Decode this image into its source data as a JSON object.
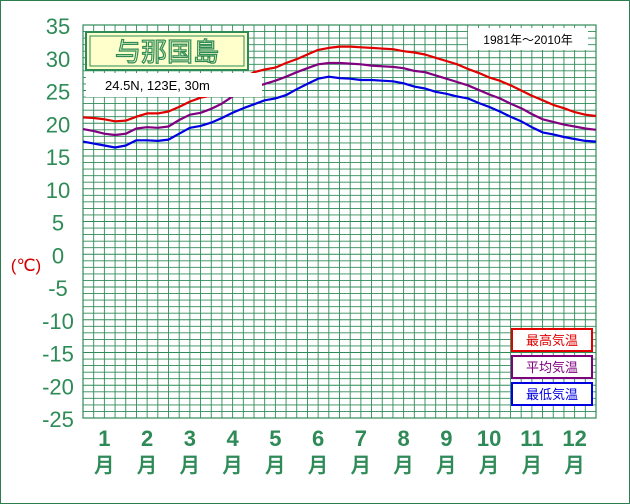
{
  "title": "与那国島",
  "location": "24.5N,  123E,  30m",
  "period": "1981年〜2010年",
  "unit_label": "(℃)",
  "colors": {
    "grid": "#2e8b57",
    "tick_text": "#2e8b57",
    "unit_text": "#d00000",
    "title_bg": "#ffffcc",
    "title_border": "#2e8b57"
  },
  "chart_data": {
    "type": "line",
    "title": "与那国島",
    "subtitle": "24.5N,  123E,  30m",
    "period": "1981年〜2010年",
    "ylabel": "(℃)",
    "ylim": [
      -25,
      35
    ],
    "yticks": [
      35,
      30,
      25,
      20,
      15,
      10,
      5,
      0,
      -5,
      -10,
      -15,
      -20,
      -25
    ],
    "month_numbers": [
      "1",
      "2",
      "3",
      "4",
      "5",
      "6",
      "7",
      "8",
      "9",
      "10",
      "11",
      "12"
    ],
    "month_suffix": "月",
    "x": [
      0.5,
      0.75,
      1.0,
      1.25,
      1.5,
      1.75,
      2.0,
      2.25,
      2.5,
      2.75,
      3.0,
      3.25,
      3.5,
      3.75,
      4.0,
      4.25,
      4.5,
      4.75,
      5.0,
      5.25,
      5.5,
      5.75,
      6.0,
      6.25,
      6.5,
      6.75,
      7.0,
      7.25,
      7.5,
      7.75,
      8.0,
      8.25,
      8.5,
      8.75,
      9.0,
      9.25,
      9.5,
      9.75,
      10.0,
      10.25,
      10.5,
      10.75,
      11.0,
      11.25,
      11.5,
      11.75,
      12.0,
      12.25,
      12.5
    ],
    "series": [
      {
        "name": "最高気温",
        "color": "#e00000",
        "values": [
          20.9,
          20.8,
          20.6,
          20.3,
          20.4,
          21.0,
          21.5,
          21.5,
          21.8,
          22.5,
          23.3,
          23.9,
          24.2,
          25.0,
          26.2,
          26.9,
          27.8,
          28.2,
          28.5,
          29.2,
          29.8,
          30.5,
          31.2,
          31.5,
          31.7,
          31.7,
          31.6,
          31.5,
          31.4,
          31.3,
          31.0,
          30.8,
          30.5,
          30.0,
          29.5,
          29.0,
          28.3,
          27.7,
          27.0,
          26.5,
          25.8,
          25.0,
          24.2,
          23.5,
          22.8,
          22.3,
          21.7,
          21.3,
          21.1
        ]
      },
      {
        "name": "平均気温",
        "color": "#800080",
        "values": [
          19.1,
          18.8,
          18.4,
          18.2,
          18.4,
          19.2,
          19.4,
          19.3,
          19.5,
          20.5,
          21.3,
          21.6,
          22.2,
          23.0,
          24.1,
          24.8,
          25.5,
          26.0,
          26.5,
          27.1,
          27.8,
          28.4,
          29.0,
          29.2,
          29.2,
          29.1,
          29.0,
          28.8,
          28.7,
          28.6,
          28.4,
          28.0,
          27.8,
          27.3,
          26.8,
          26.3,
          25.8,
          25.1,
          24.4,
          23.8,
          23.0,
          22.3,
          21.4,
          20.6,
          20.2,
          19.8,
          19.5,
          19.2,
          19.0
        ]
      },
      {
        "name": "最低気温",
        "color": "#0000e0",
        "values": [
          17.2,
          16.9,
          16.6,
          16.3,
          16.6,
          17.4,
          17.4,
          17.3,
          17.5,
          18.4,
          19.3,
          19.6,
          20.1,
          20.8,
          21.6,
          22.3,
          22.9,
          23.5,
          23.8,
          24.3,
          25.2,
          26.0,
          26.8,
          27.1,
          26.9,
          26.8,
          26.6,
          26.6,
          26.5,
          26.4,
          26.1,
          25.6,
          25.3,
          24.8,
          24.5,
          24.1,
          23.8,
          23.1,
          22.5,
          21.8,
          21.0,
          20.3,
          19.4,
          18.6,
          18.3,
          17.9,
          17.6,
          17.3,
          17.2
        ]
      }
    ],
    "grid": true,
    "legend_position": "bottom-right"
  }
}
